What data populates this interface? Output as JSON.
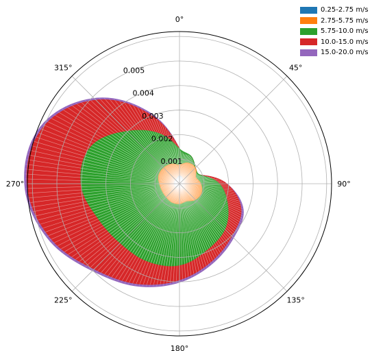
{
  "chart_data": {
    "type": "area",
    "projection": "polar",
    "theta_zero": "north",
    "theta_direction": "clockwise",
    "angle_tick_labels": [
      "0°",
      "45°",
      "90°",
      "135°",
      "180°",
      "225°",
      "270°",
      "315°"
    ],
    "radial_tick_labels": [
      "0.001",
      "0.002",
      "0.003",
      "0.004",
      "0.005"
    ],
    "rmax": 0.0062,
    "grid": true,
    "legend": "top-right",
    "directions_deg": [
      0,
      22.5,
      45,
      67.5,
      90,
      112.5,
      135,
      157.5,
      180,
      202.5,
      225,
      247.5,
      270,
      292.5,
      315,
      337.5
    ],
    "series": [
      {
        "name": "0.25-2.75 m/s",
        "color": "#1f77b4",
        "values": [
          0.0003,
          0.00025,
          0.0001,
          8e-05,
          0.0001,
          0.0001,
          0.0001,
          0.0001,
          0.0001,
          0.00012,
          0.00015,
          0.00018,
          0.0002,
          0.0002,
          0.0002,
          0.00022
        ]
      },
      {
        "name": "2.75-5.75 m/s",
        "color": "#ff7f0e",
        "values": [
          0.00075,
          0.0009,
          0.0009,
          0.0007,
          0.00085,
          0.00095,
          0.0009,
          0.00075,
          0.0008,
          0.0008,
          0.00075,
          0.00075,
          0.0008,
          0.0009,
          0.0009,
          0.00085
        ]
      },
      {
        "name": "5.75-10.0 m/s",
        "color": "#2ca02c",
        "values": [
          0.0014,
          0.0012,
          0.0009,
          0.0009,
          0.0016,
          0.0021,
          0.0026,
          0.0029,
          0.0033,
          0.0034,
          0.0034,
          0.0036,
          0.004,
          0.0039,
          0.003,
          0.0022
        ]
      },
      {
        "name": "10.0-15.0 m/s",
        "color": "#d62728",
        "values": [
          0.0014,
          0.0012,
          0.0009,
          0.0009,
          0.0019,
          0.0027,
          0.003,
          0.0034,
          0.0039,
          0.0044,
          0.0049,
          0.0057,
          0.0062,
          0.006,
          0.0048,
          0.003
        ]
      },
      {
        "name": "15.0-20.0 m/s",
        "color": "#9467bd",
        "values": [
          0.0014,
          0.0012,
          0.0009,
          0.0009,
          0.0019,
          0.0028,
          0.0031,
          0.0035,
          0.004,
          0.0045,
          0.005,
          0.0058,
          0.0063,
          0.0061,
          0.0049,
          0.0031
        ]
      }
    ]
  }
}
